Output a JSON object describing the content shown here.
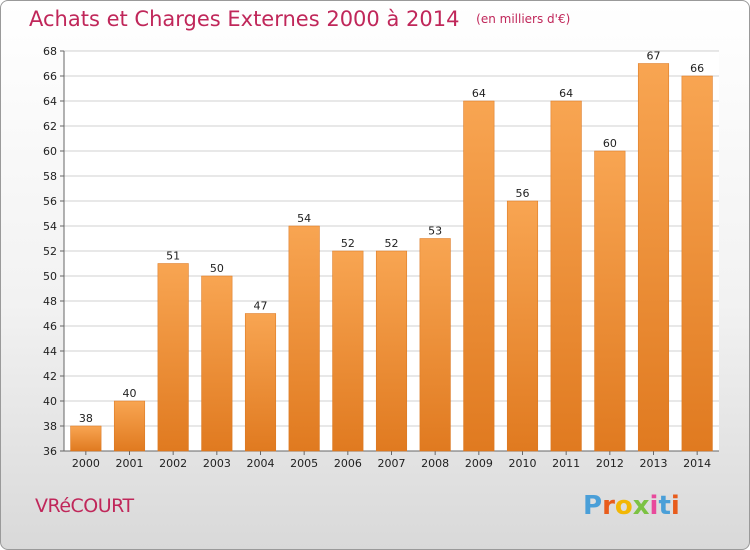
{
  "header": {
    "title": "Achats et Charges Externes 2000 à 2014",
    "subtitle": "(en milliers d'€)"
  },
  "footer": {
    "commune": "VRéCOURT",
    "logo_letters": [
      "P",
      "r",
      "o",
      "x",
      "i",
      "t",
      "i"
    ],
    "logo_colors": [
      "#4a9fd8",
      "#e85c1c",
      "#f2b705",
      "#7cc242",
      "#e84a9c",
      "#4a9fd8",
      "#e85c1c"
    ]
  },
  "chart_data": {
    "type": "bar",
    "title": "Achats et Charges Externes 2000 à 2014",
    "subtitle": "(en milliers d'€)",
    "categories": [
      "2000",
      "2001",
      "2002",
      "2003",
      "2004",
      "2005",
      "2006",
      "2007",
      "2008",
      "2009",
      "2010",
      "2011",
      "2012",
      "2013",
      "2014"
    ],
    "values": [
      38,
      40,
      51,
      50,
      47,
      54,
      52,
      52,
      53,
      64,
      56,
      64,
      60,
      67,
      66
    ],
    "ylim": [
      36,
      68
    ],
    "yticks": [
      36,
      38,
      40,
      42,
      44,
      46,
      48,
      50,
      52,
      54,
      56,
      58,
      60,
      62,
      64,
      66,
      68
    ],
    "grid": true,
    "bar_color_light": "#f8a552",
    "bar_color_dark": "#e07a20",
    "xlabel": "",
    "ylabel": ""
  }
}
